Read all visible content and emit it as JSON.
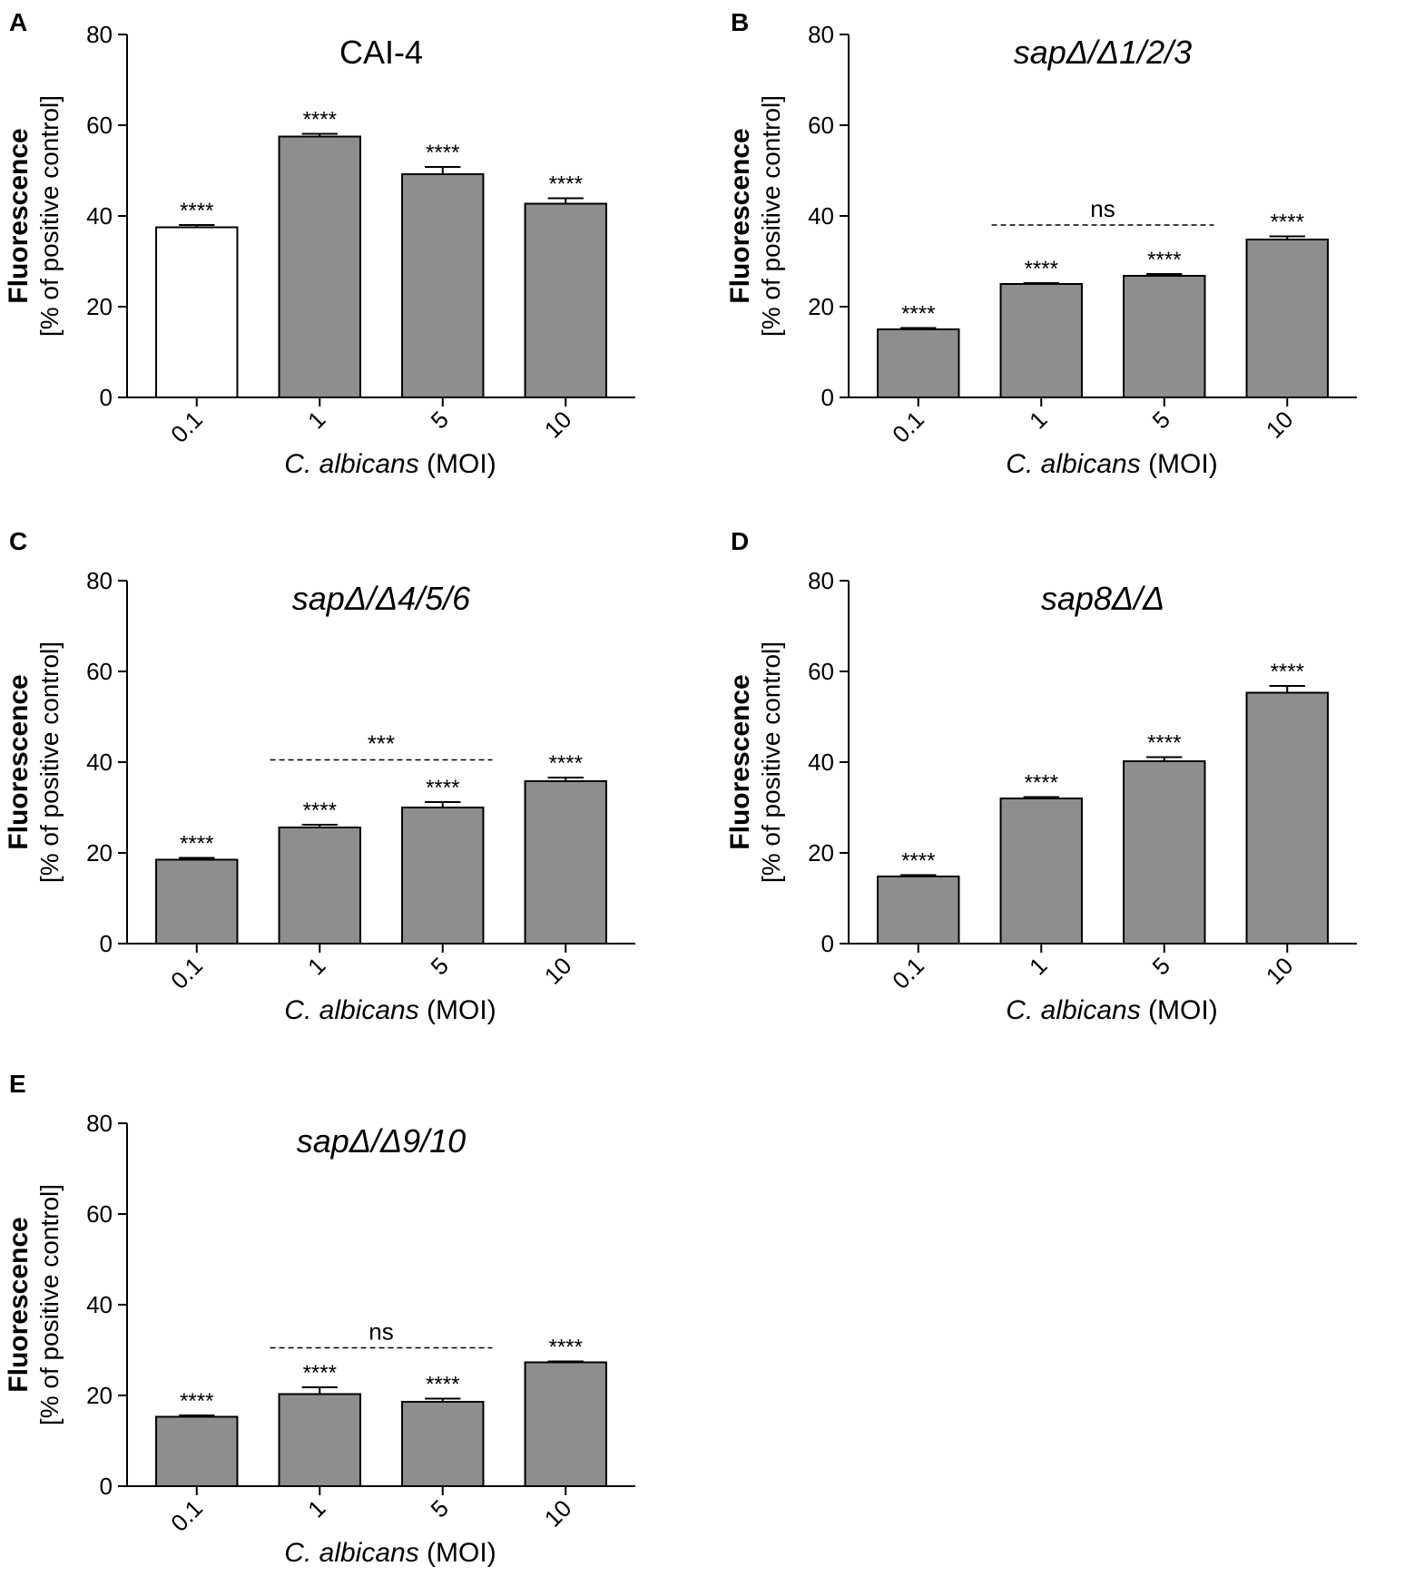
{
  "figure": {
    "colors": {
      "bar_fill": "#8e8e8e",
      "bar_fill_white": "#ffffff",
      "ink": "#000000"
    }
  },
  "chart_data": [
    {
      "panel": "A",
      "type": "bar",
      "title": "CAI-4",
      "title_italic": false,
      "ylabel_bold": "Fluorescence",
      "ylabel": "[% of positive control]",
      "xlabel_italic": "C. albicans",
      "xlabel": " (MOI)",
      "categories": [
        "0.1",
        "1",
        "5",
        "10"
      ],
      "values": [
        37.5,
        57.5,
        49.2,
        42.7
      ],
      "errors": [
        0.5,
        0.6,
        1.6,
        1.2
      ],
      "annotations": [
        "****",
        "****",
        "****",
        "****"
      ],
      "bar_colors": [
        "#ffffff",
        "#8e8e8e",
        "#8e8e8e",
        "#8e8e8e"
      ],
      "yticks": [
        "0",
        "20",
        "40",
        "60",
        "80"
      ],
      "ylim": [
        0,
        80
      ],
      "comparison": null
    },
    {
      "panel": "B",
      "type": "bar",
      "title": "sapΔ/Δ1/2/3",
      "title_italic": true,
      "ylabel_bold": "Fluorescence",
      "ylabel": "[% of positive control]",
      "xlabel_italic": "C. albicans",
      "xlabel": " (MOI)",
      "categories": [
        "0.1",
        "1",
        "5",
        "10"
      ],
      "values": [
        15.0,
        25.0,
        26.8,
        34.8
      ],
      "errors": [
        0.3,
        0.2,
        0.4,
        0.7
      ],
      "annotations": [
        "****",
        "****",
        "****",
        "****"
      ],
      "bar_colors": [
        "#8e8e8e",
        "#8e8e8e",
        "#8e8e8e",
        "#8e8e8e"
      ],
      "yticks": [
        "0",
        "20",
        "40",
        "60",
        "80"
      ],
      "ylim": [
        0,
        80
      ],
      "comparison": {
        "label": "ns",
        "from": 1,
        "to": 2,
        "y": 38
      }
    },
    {
      "panel": "C",
      "type": "bar",
      "title": "sapΔ/Δ4/5/6",
      "title_italic": true,
      "ylabel_bold": "Fluorescence",
      "ylabel": "[% of positive control]",
      "xlabel_italic": "C. albicans",
      "xlabel": " (MOI)",
      "categories": [
        "0.1",
        "1",
        "5",
        "10"
      ],
      "values": [
        18.5,
        25.6,
        30.0,
        35.8
      ],
      "errors": [
        0.4,
        0.6,
        1.2,
        0.8
      ],
      "annotations": [
        "****",
        "****",
        "****",
        "****"
      ],
      "bar_colors": [
        "#8e8e8e",
        "#8e8e8e",
        "#8e8e8e",
        "#8e8e8e"
      ],
      "yticks": [
        "0",
        "20",
        "40",
        "60",
        "80"
      ],
      "ylim": [
        0,
        80
      ],
      "comparison": {
        "label": "***",
        "from": 1,
        "to": 2,
        "y": 40.5
      }
    },
    {
      "panel": "D",
      "type": "bar",
      "title": "sap8Δ/Δ",
      "title_italic": true,
      "ylabel_bold": "Fluorescence",
      "ylabel": "[% of positive control]",
      "xlabel_italic": "C. albicans",
      "xlabel": " (MOI)",
      "categories": [
        "0.1",
        "1",
        "5",
        "10"
      ],
      "values": [
        14.8,
        32.0,
        40.2,
        55.3
      ],
      "errors": [
        0.3,
        0.3,
        0.9,
        1.5
      ],
      "annotations": [
        "****",
        "****",
        "****",
        "****"
      ],
      "bar_colors": [
        "#8e8e8e",
        "#8e8e8e",
        "#8e8e8e",
        "#8e8e8e"
      ],
      "yticks": [
        "0",
        "20",
        "40",
        "60",
        "80"
      ],
      "ylim": [
        0,
        80
      ],
      "comparison": null
    },
    {
      "panel": "E",
      "type": "bar",
      "title": "sapΔ/Δ9/10",
      "title_italic": true,
      "ylabel_bold": "Fluorescence",
      "ylabel": "[% of positive control]",
      "xlabel_italic": "C. albicans",
      "xlabel": " (MOI)",
      "categories": [
        "0.1",
        "1",
        "5",
        "10"
      ],
      "values": [
        15.3,
        20.3,
        18.6,
        27.3
      ],
      "errors": [
        0.3,
        1.5,
        0.7,
        0.2
      ],
      "annotations": [
        "****",
        "****",
        "****",
        "****"
      ],
      "bar_colors": [
        "#8e8e8e",
        "#8e8e8e",
        "#8e8e8e",
        "#8e8e8e"
      ],
      "yticks": [
        "0",
        "20",
        "40",
        "60",
        "80"
      ],
      "ylim": [
        0,
        80
      ],
      "comparison": {
        "label": "ns",
        "from": 1,
        "to": 2,
        "y": 30.5
      }
    }
  ]
}
